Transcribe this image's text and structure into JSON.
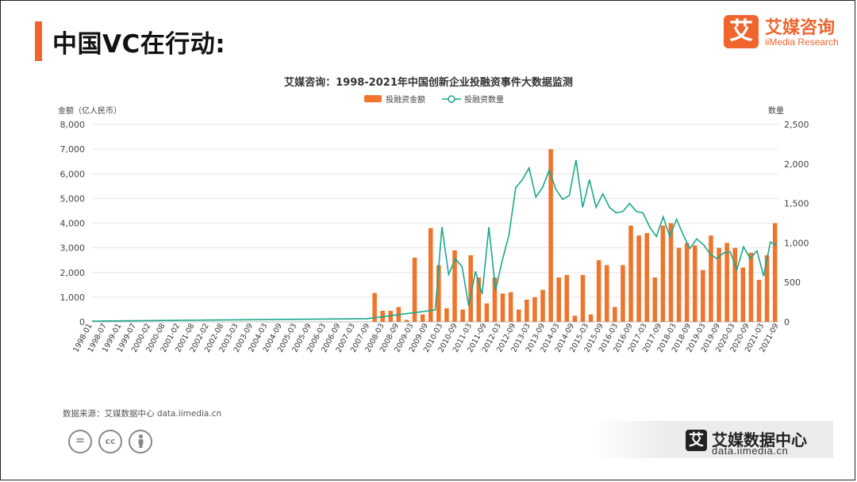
{
  "page": {
    "title": "中国VC在行动:"
  },
  "brand": {
    "logo_char": "艾",
    "name": "艾媒咨询",
    "sub": "iiMedia Research"
  },
  "footer": {
    "source": "数据来源：艾媒数据中心 data.iimedia.cn",
    "logo_char": "艾",
    "name": "艾媒数据中心",
    "url": "data.iimedia.cn",
    "license_icons": [
      "=",
      "cc",
      "person"
    ]
  },
  "chart_data": {
    "type": "bar",
    "title": "艾媒咨询：1998-2021年中国创新企业投融资事件大数据监测",
    "ylabel_left": "金额（亿人民币）",
    "ylabel_right": "数量",
    "ylim_left": [
      0,
      8000
    ],
    "ylim_right": [
      0,
      2500
    ],
    "left_ticks": [
      "0",
      "1,000",
      "2,000",
      "3,000",
      "4,000",
      "5,000",
      "6,000",
      "7,000",
      "8,000"
    ],
    "right_ticks": [
      "0",
      "500",
      "1,000",
      "1,500",
      "2,000",
      "2,500"
    ],
    "grid": true,
    "legend_position": "top",
    "colors": {
      "bar": "#f0742b",
      "line": "#1aa88c"
    },
    "series": [
      {
        "name": "投融资金额",
        "type": "bar",
        "axis": "left",
        "values": [
          10,
          1170,
          450,
          450,
          600,
          80,
          2600,
          300,
          3800,
          2300,
          550,
          2900,
          500,
          2700,
          1800,
          750,
          1800,
          1150,
          1200,
          500,
          900,
          1000,
          1300,
          7000,
          1800,
          1900,
          250,
          1900,
          300,
          2500,
          2300,
          600,
          2300,
          3900,
          3500,
          3600,
          1800,
          3900,
          4000,
          3000,
          3200,
          3100,
          2100,
          3500,
          3000,
          3200,
          3000,
          2200,
          2800,
          1700,
          2700,
          4000
        ]
      },
      {
        "name": "投融资数量",
        "type": "line",
        "axis": "right",
        "values": [
          150,
          1200,
          600,
          800,
          700,
          200,
          640,
          350,
          1200,
          400,
          780,
          1100,
          1700,
          1800,
          1950,
          1580,
          1700,
          1920,
          1680,
          1550,
          1600,
          2050,
          1450,
          1800,
          1450,
          1620,
          1450,
          1380,
          1400,
          1500,
          1400,
          1380,
          1200,
          1080,
          1330,
          1080,
          1300,
          1100,
          930,
          1050,
          980,
          860,
          800,
          870,
          890,
          660,
          950,
          800,
          900,
          580,
          1010,
          970
        ]
      }
    ],
    "x_tick_labels": [
      "1998-01",
      "1998-07",
      "1999-01",
      "1999-07",
      "2000-02",
      "2000-08",
      "2001-02",
      "2001-08",
      "2002-02",
      "2002-08",
      "2003-03",
      "2003-09",
      "2004-03",
      "2004-09",
      "2005-03",
      "2005-09",
      "2006-03",
      "2006-09",
      "2007-03",
      "2007-09",
      "2008-03",
      "2008-09",
      "2009-03",
      "2009-09",
      "2010-03",
      "2010-09",
      "2011-03",
      "2011-09",
      "2012-03",
      "2012-09",
      "2013-03",
      "2013-09",
      "2014-03",
      "2014-09",
      "2015-03",
      "2015-09",
      "2016-03",
      "2016-09",
      "2017-03",
      "2017-09",
      "2018-03",
      "2018-09",
      "2019-03",
      "2019-09",
      "2020-03",
      "2020-09",
      "2021-03",
      "2021-09"
    ]
  }
}
